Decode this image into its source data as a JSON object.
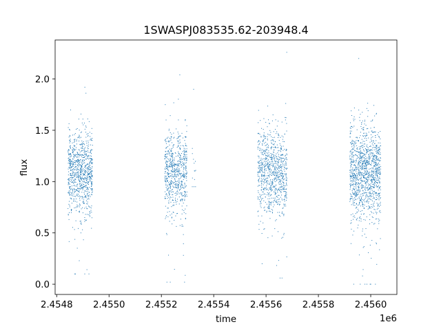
{
  "chart_data": {
    "type": "scatter",
    "title": "1SWASPJ083535.62-203948.4",
    "xlabel": "time",
    "ylabel": "flux",
    "x_offset_label": "1e6",
    "xlim": [
      2454794,
      2456100
    ],
    "ylim": [
      -0.1,
      2.38
    ],
    "x_ticks": [
      2454800,
      2455000,
      2455200,
      2455400,
      2455600,
      2455800,
      2456000
    ],
    "x_tick_labels": [
      "2.4548",
      "2.4550",
      "2.4552",
      "2.4554",
      "2.4556",
      "2.4558",
      "2.4560"
    ],
    "y_ticks": [
      0.0,
      0.5,
      1.0,
      1.5,
      2.0
    ],
    "y_tick_labels": [
      "0.0",
      "0.5",
      "1.0",
      "1.5",
      "2.0"
    ],
    "grid": false,
    "marker_color": "#1f77b4",
    "series": [
      {
        "clusters": [
          {
            "x_range": [
              2454843,
              2454937
            ],
            "center": 1.1,
            "sigma": 0.2,
            "n": 900,
            "extreme": [
              0.1,
              1.92
            ]
          },
          {
            "x_range": [
              2455213,
              2455298
            ],
            "center": 1.1,
            "sigma": 0.2,
            "n": 700,
            "extreme": [
              0.02,
              2.04
            ]
          },
          {
            "x_range": [
              2455318,
              2455332
            ],
            "center": 1.15,
            "sigma": 0.12,
            "n": 12,
            "extreme": [
              0.95,
              1.9
            ]
          },
          {
            "x_range": [
              2455568,
              2455680
            ],
            "center": 1.1,
            "sigma": 0.2,
            "n": 900,
            "extreme": [
              0.06,
              2.26
            ]
          },
          {
            "x_range": [
              2455920,
              2456038
            ],
            "center": 1.1,
            "sigma": 0.22,
            "n": 1300,
            "extreme": [
              0.0,
              2.2
            ]
          }
        ]
      }
    ]
  }
}
